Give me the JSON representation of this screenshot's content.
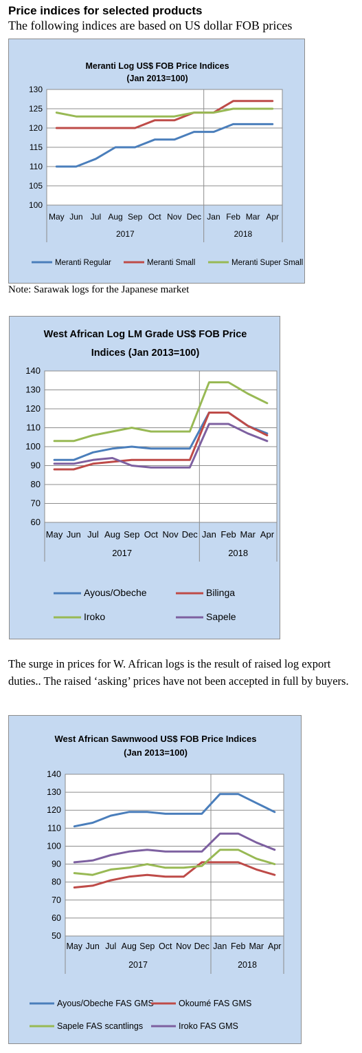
{
  "page": {
    "heading": "Price indices for selected products",
    "subheading": "The following indices are based on US dollar FOB prices",
    "note": "Note: Sarawak logs for the Japanese market",
    "paragraph": "The surge in prices for W. African logs is the result of raised log export duties.. The raised ‘asking’ prices have not been accepted in full by buyers."
  },
  "chart_data": [
    {
      "type": "line",
      "title": [
        "Meranti Log US$ FOB Price Indices",
        "(Jan 2013=100)"
      ],
      "categories": [
        "May",
        "Jun",
        "Jul",
        "Aug",
        "Sep",
        "Oct",
        "Nov",
        "Dec",
        "Jan",
        "Feb",
        "Mar",
        "Apr"
      ],
      "year_groups": [
        {
          "label": "2017",
          "count": 8
        },
        {
          "label": "2018",
          "count": 4
        }
      ],
      "ylim": [
        100,
        130
      ],
      "yticks": [
        100,
        105,
        110,
        115,
        120,
        125,
        130
      ],
      "grid": true,
      "legend_position": "bottom",
      "series": [
        {
          "name": "Meranti Regular",
          "color": "#4a7ebb",
          "values": [
            110,
            110,
            112,
            115,
            115,
            117,
            117,
            119,
            119,
            121,
            121,
            121
          ]
        },
        {
          "name": "Meranti Small",
          "color": "#be4b48",
          "values": [
            120,
            120,
            120,
            120,
            120,
            122,
            122,
            124,
            124,
            127,
            127,
            127
          ]
        },
        {
          "name": "Meranti Super Small",
          "color": "#98b954",
          "values": [
            124,
            123,
            123,
            123,
            123,
            123,
            123,
            124,
            124,
            125,
            125,
            125
          ]
        }
      ]
    },
    {
      "type": "line",
      "title": [
        "West African Log LM Grade US$ FOB Price",
        "Indices (Jan 2013=100)"
      ],
      "categories": [
        "May",
        "Jun",
        "Jul",
        "Aug",
        "Sep",
        "Oct",
        "Nov",
        "Dec",
        "Jan",
        "Feb",
        "Mar",
        "Apr"
      ],
      "year_groups": [
        {
          "label": "2017",
          "count": 8
        },
        {
          "label": "2018",
          "count": 4
        }
      ],
      "ylim": [
        60,
        140
      ],
      "yticks": [
        60,
        70,
        80,
        90,
        100,
        110,
        120,
        130,
        140
      ],
      "grid": true,
      "legend_position": "bottom",
      "series": [
        {
          "name": "Ayous/Obeche",
          "color": "#4a7ebb",
          "values": [
            93,
            93,
            97,
            99,
            100,
            99,
            99,
            99,
            118,
            118,
            111,
            107
          ]
        },
        {
          "name": "Bilinga",
          "color": "#be4b48",
          "values": [
            88,
            88,
            91,
            92,
            93,
            93,
            93,
            93,
            118,
            118,
            111,
            106
          ]
        },
        {
          "name": "Iroko",
          "color": "#98b954",
          "values": [
            103,
            103,
            106,
            108,
            110,
            108,
            108,
            108,
            134,
            134,
            128,
            123
          ]
        },
        {
          "name": "Sapele",
          "color": "#7d60a0",
          "values": [
            91,
            91,
            93,
            94,
            90,
            89,
            89,
            89,
            112,
            112,
            107,
            103
          ]
        }
      ]
    },
    {
      "type": "line",
      "title": [
        "West African Sawnwood US$ FOB Price Indices",
        "(Jan 2013=100)"
      ],
      "categories": [
        "May",
        "Jun",
        "Jul",
        "Aug",
        "Sep",
        "Oct",
        "Nov",
        "Dec",
        "Jan",
        "Feb",
        "Mar",
        "Apr"
      ],
      "year_groups": [
        {
          "label": "2017",
          "count": 8
        },
        {
          "label": "2018",
          "count": 4
        }
      ],
      "ylim": [
        50,
        140
      ],
      "yticks": [
        50,
        60,
        70,
        80,
        90,
        100,
        110,
        120,
        130,
        140
      ],
      "grid": true,
      "legend_position": "bottom",
      "series": [
        {
          "name": "Ayous/Obeche FAS GMS",
          "color": "#4a7ebb",
          "values": [
            111,
            113,
            117,
            119,
            119,
            118,
            118,
            118,
            129,
            129,
            124,
            119
          ]
        },
        {
          "name": "Okoumé FAS GMS",
          "color": "#be4b48",
          "values": [
            77,
            78,
            81,
            83,
            84,
            83,
            83,
            91,
            91,
            91,
            87,
            84
          ]
        },
        {
          "name": "Sapele FAS scantlings",
          "color": "#98b954",
          "values": [
            85,
            84,
            87,
            88,
            90,
            88,
            88,
            89,
            98,
            98,
            93,
            90
          ]
        },
        {
          "name": "Iroko FAS GMS",
          "color": "#7d60a0",
          "values": [
            91,
            92,
            95,
            97,
            98,
            97,
            97,
            97,
            107,
            107,
            102,
            98
          ]
        }
      ]
    }
  ]
}
